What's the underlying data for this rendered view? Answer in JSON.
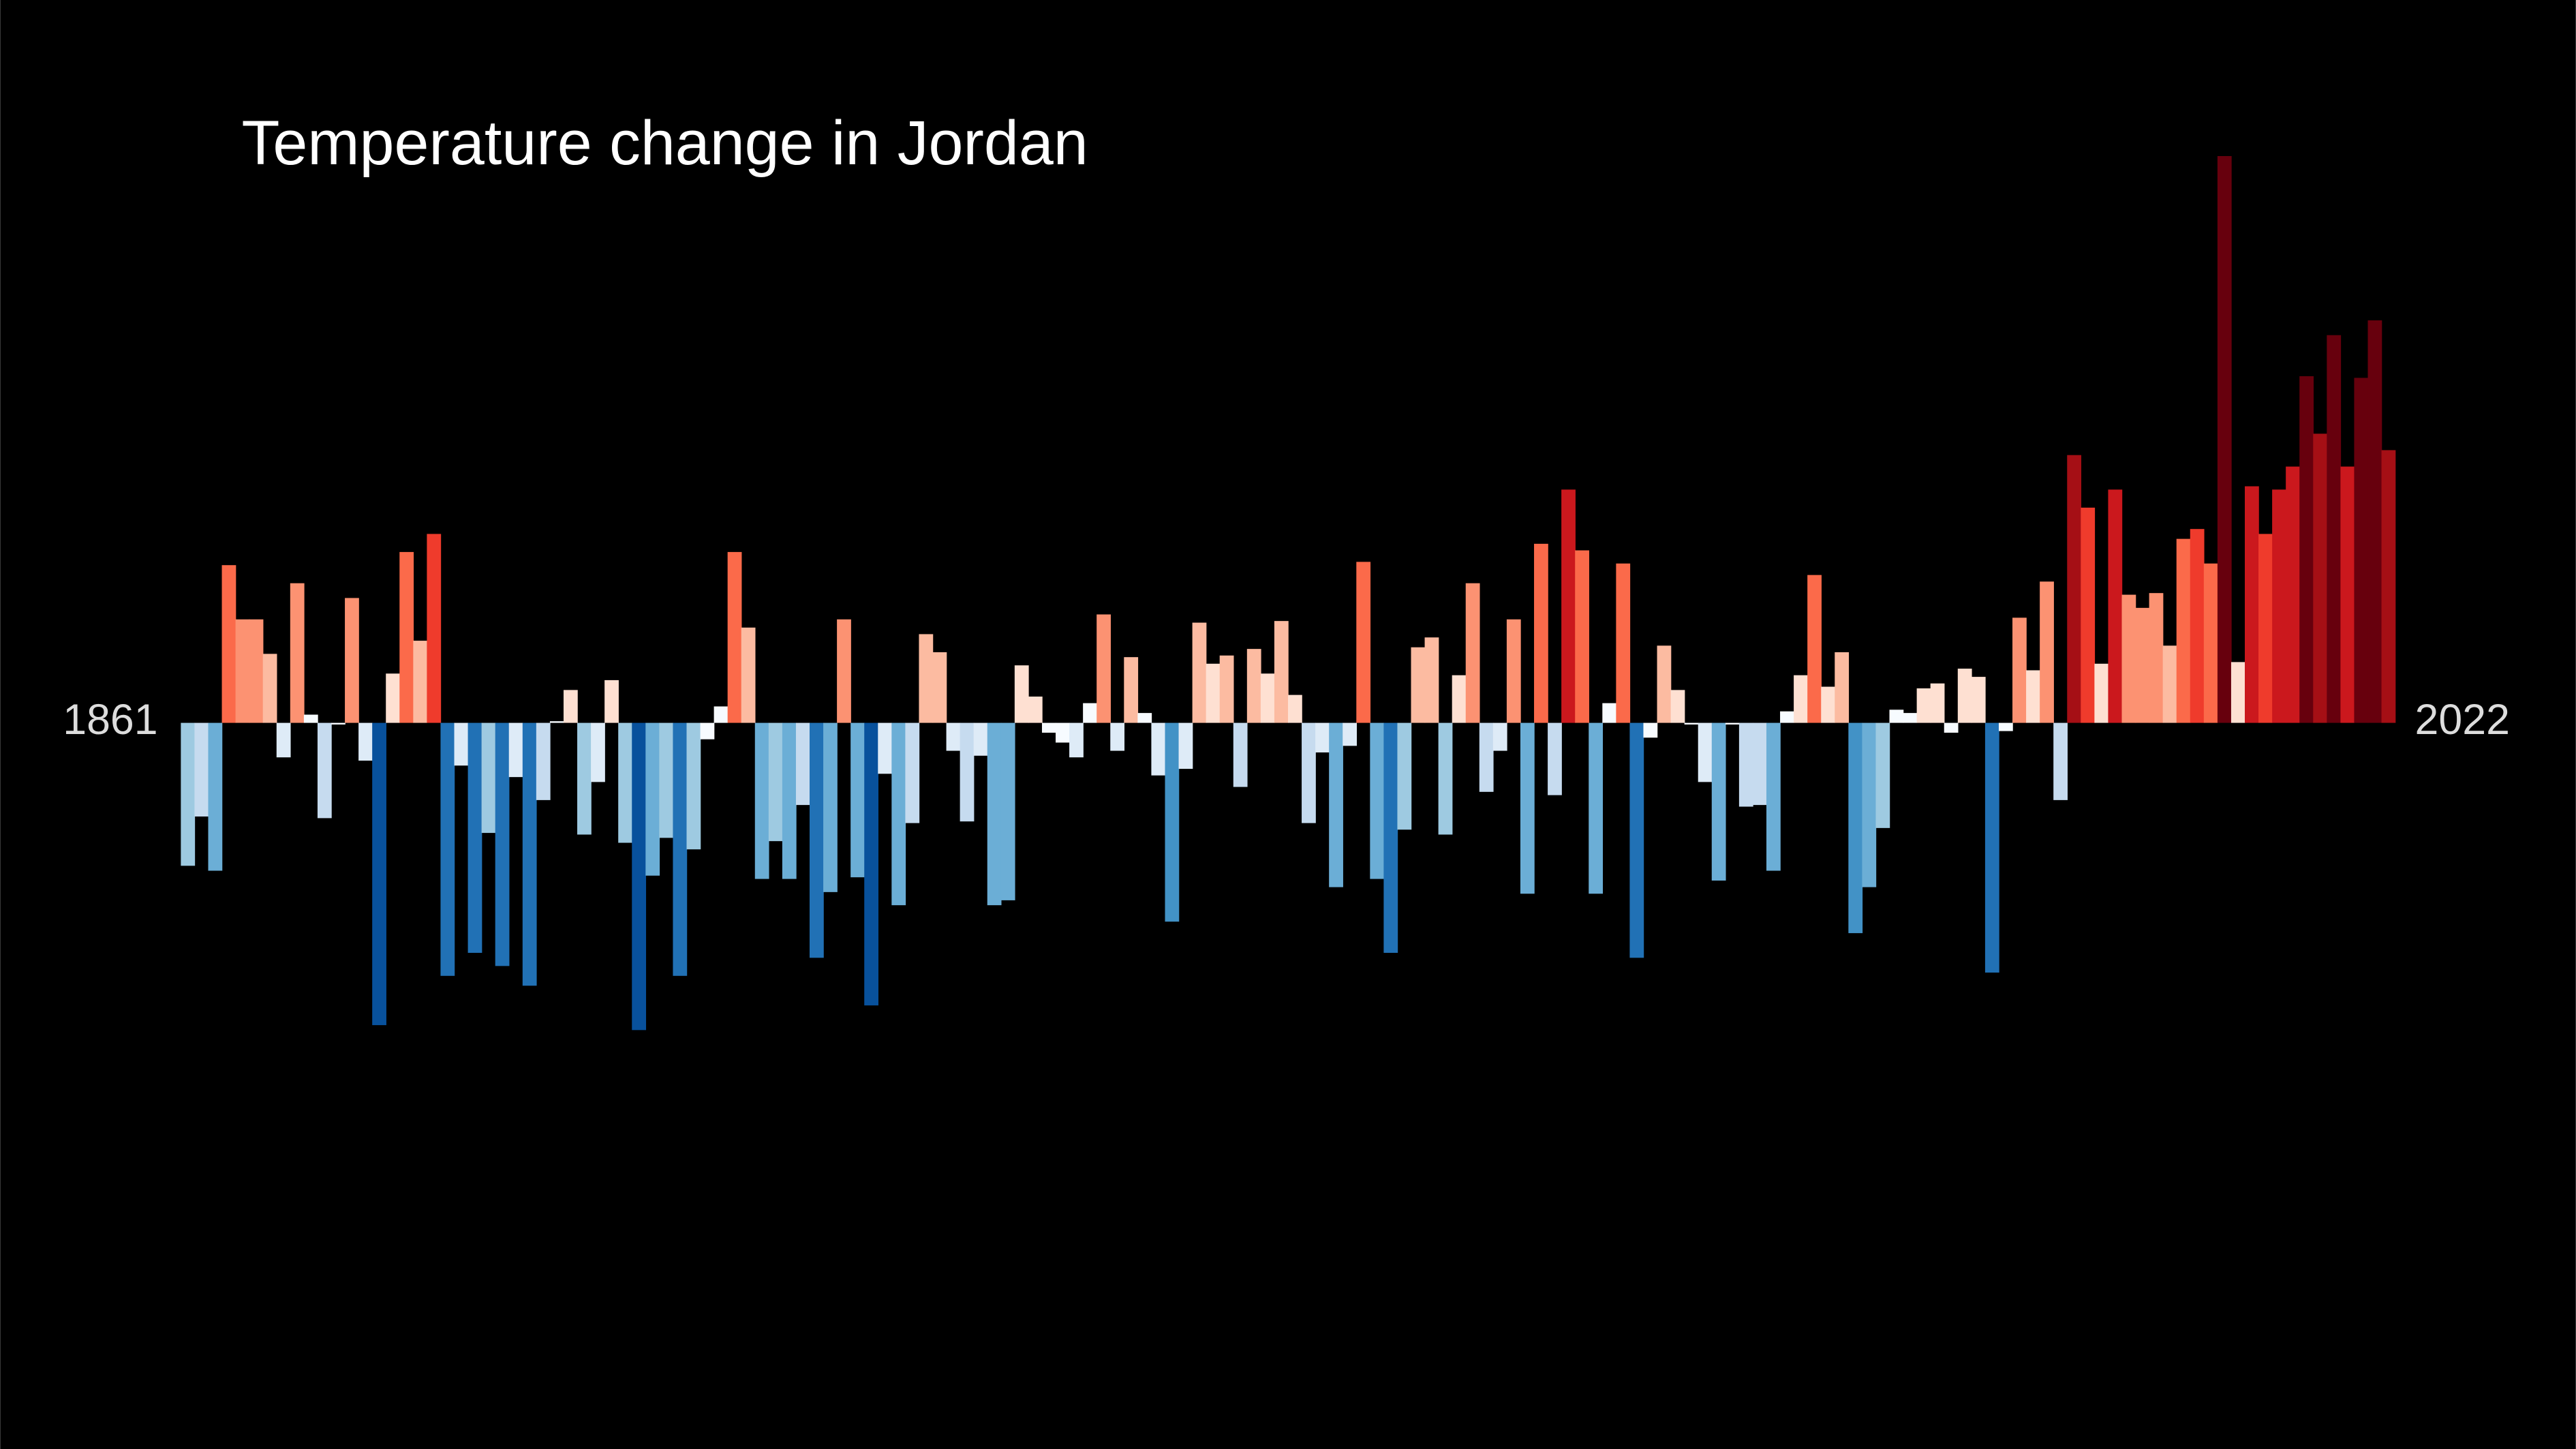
{
  "chart_data": {
    "type": "bar",
    "title": "Temperature change in Jordan",
    "categories": [
      1861,
      null,
      null,
      null,
      null,
      null,
      null,
      null,
      null,
      null,
      null,
      null,
      null,
      null,
      null,
      null,
      null,
      null,
      null,
      null,
      null,
      null,
      null,
      null,
      null,
      null,
      null,
      null,
      null,
      null,
      null,
      null,
      null,
      null,
      null,
      null,
      null,
      null,
      null,
      null,
      null,
      null,
      null,
      null,
      null,
      null,
      null,
      null,
      null,
      null,
      null,
      null,
      null,
      null,
      null,
      null,
      null,
      null,
      null,
      null,
      null,
      null,
      null,
      null,
      null,
      null,
      null,
      null,
      null,
      null,
      null,
      null,
      null,
      null,
      null,
      null,
      null,
      null,
      null,
      null,
      null,
      null,
      null,
      null,
      null,
      null,
      null,
      null,
      null,
      null,
      null,
      null,
      null,
      null,
      null,
      null,
      null,
      null,
      null,
      null,
      null,
      null,
      null,
      null,
      null,
      null,
      null,
      null,
      null,
      null,
      null,
      null,
      null,
      null,
      null,
      null,
      null,
      null,
      null,
      null,
      null,
      null,
      null,
      null,
      null,
      null,
      null,
      null,
      null,
      null,
      null,
      null,
      null,
      null,
      null,
      null,
      null,
      null,
      null,
      null,
      null,
      null,
      null,
      null,
      null,
      null,
      null,
      null,
      null,
      null,
      null,
      null,
      null,
      null,
      null,
      null,
      null,
      null,
      null,
      null,
      null,
      2022
    ],
    "values": [
      -0.87,
      -0.57,
      -0.9,
      0.96,
      0.63,
      0.63,
      0.42,
      -0.21,
      0.85,
      0.05,
      -0.58,
      -0.01,
      0.76,
      -0.23,
      -1.84,
      0.3,
      1.04,
      0.5,
      1.15,
      -1.54,
      -0.26,
      -1.4,
      -0.67,
      -1.48,
      -0.33,
      -1.6,
      -0.47,
      0.01,
      0.2,
      -0.68,
      -0.36,
      0.26,
      -0.73,
      -1.87,
      -0.93,
      -0.7,
      -1.54,
      -0.77,
      -0.1,
      0.1,
      1.04,
      0.58,
      -0.95,
      -0.72,
      -0.95,
      -0.5,
      -1.43,
      -1.03,
      0.63,
      -0.94,
      -1.72,
      -0.31,
      -1.11,
      -0.61,
      0.54,
      0.43,
      -0.17,
      -0.6,
      -0.2,
      -1.11,
      -1.08,
      0.35,
      0.16,
      -0.06,
      -0.12,
      -0.21,
      0.12,
      0.66,
      -0.17,
      0.4,
      0.06,
      -0.32,
      -1.21,
      -0.28,
      0.61,
      0.36,
      0.41,
      -0.39,
      0.45,
      0.3,
      0.62,
      0.17,
      -0.61,
      -0.18,
      -1.0,
      -0.14,
      0.98,
      -0.95,
      -1.4,
      -0.65,
      0.46,
      0.52,
      -0.68,
      0.29,
      0.85,
      -0.42,
      -0.17,
      0.63,
      -1.04,
      1.09,
      -0.44,
      1.42,
      1.05,
      -1.04,
      0.12,
      0.97,
      -1.43,
      -0.09,
      0.47,
      0.2,
      -0.01,
      -0.36,
      -0.96,
      -0.01,
      -0.51,
      -0.5,
      -0.9,
      0.07,
      0.29,
      0.9,
      0.22,
      0.43,
      -1.28,
      -1.0,
      -0.64,
      0.08,
      0.06,
      0.21,
      0.24,
      -0.06,
      0.33,
      0.28,
      -1.52,
      -0.05,
      0.64,
      0.32,
      0.86,
      -0.47,
      1.63,
      1.31,
      0.36,
      1.42,
      0.78,
      0.7,
      0.79,
      0.47,
      1.12,
      1.18,
      0.97,
      3.45,
      0.37,
      1.44,
      1.15,
      1.42,
      1.56,
      2.11,
      1.76,
      2.36,
      1.56,
      2.1,
      2.45,
      1.66
    ],
    "ylim": [
      -4.42,
      4.4
    ],
    "color_scale": {
      "domain": [
        -2,
        2
      ],
      "colors": [
        "#08306b",
        "#08519c",
        "#2171b5",
        "#4292c6",
        "#6baed6",
        "#9ecae1",
        "#c6dbef",
        "#deebf7",
        "#f7fbff",
        "#fee0d2",
        "#fcbba1",
        "#fc9272",
        "#fb6a4a",
        "#ef3b2c",
        "#cb181d",
        "#a50f15",
        "#67000d"
      ]
    },
    "background": "#000000",
    "text_color": "#ffffff",
    "label_color": "#dddddd"
  }
}
